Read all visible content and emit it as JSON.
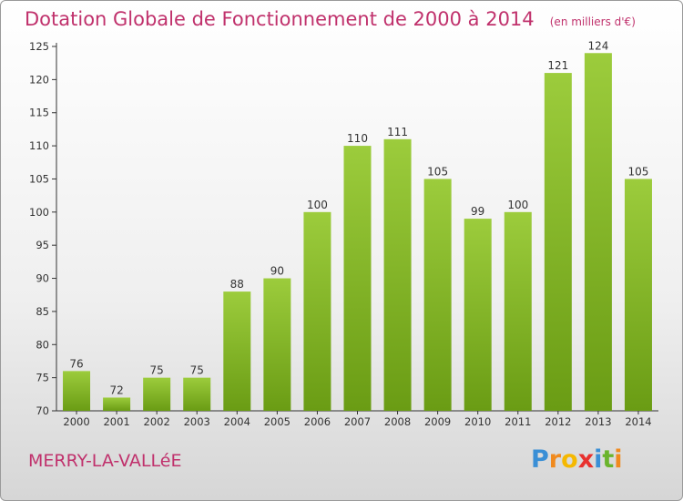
{
  "chart_data": {
    "type": "bar",
    "title": "Dotation Globale de Fonctionnement de 2000 à 2014",
    "unit_note": "(en milliers d'€)",
    "categories": [
      "2000",
      "2001",
      "2002",
      "2003",
      "2004",
      "2005",
      "2006",
      "2007",
      "2008",
      "2009",
      "2010",
      "2011",
      "2012",
      "2013",
      "2014"
    ],
    "values": [
      76,
      72,
      75,
      75,
      88,
      90,
      100,
      110,
      111,
      105,
      99,
      100,
      121,
      124,
      105
    ],
    "ylim": [
      70,
      125
    ],
    "yticks": [
      70,
      75,
      80,
      85,
      90,
      95,
      100,
      105,
      110,
      115,
      120,
      125
    ],
    "grid": false,
    "bar_color_top": "#9ccc3c",
    "bar_color_bottom": "#6a9c14"
  },
  "commune": "MERRY-LA-VALLéE",
  "logo": {
    "letters": [
      "P",
      "r",
      "o",
      "x",
      "i",
      "t",
      "i"
    ],
    "colors": [
      "#3a8fd6",
      "#f08a1e",
      "#f5b800",
      "#e8312e",
      "#3a8fd6",
      "#6ab42d",
      "#f08a1e"
    ]
  }
}
